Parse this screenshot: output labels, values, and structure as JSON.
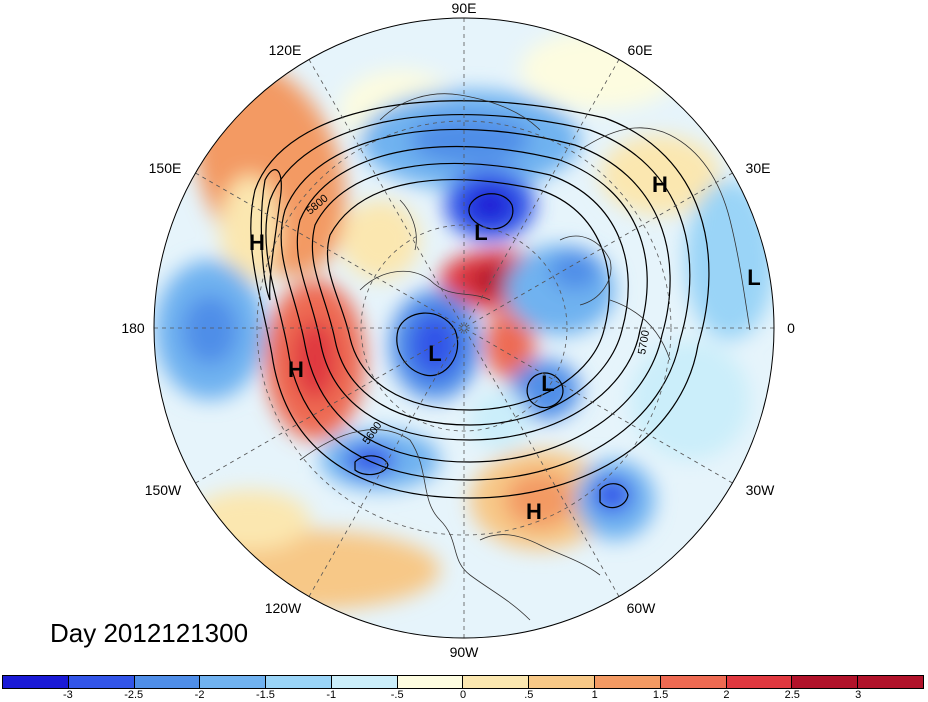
{
  "title": "Day 2012121300",
  "longitude_labels": [
    "90E",
    "60E",
    "30E",
    "0",
    "30W",
    "60W",
    "90W",
    "120W",
    "150W",
    "180",
    "150E",
    "120E"
  ],
  "contour_labels": [
    "5800",
    "5700",
    "5600"
  ],
  "centers": [
    {
      "type": "H"
    },
    {
      "type": "H"
    },
    {
      "type": "H"
    },
    {
      "type": "H"
    },
    {
      "type": "L"
    },
    {
      "type": "L"
    },
    {
      "type": "L"
    },
    {
      "type": "L"
    }
  ],
  "colorbar": {
    "colors": [
      "#1a1ad6",
      "#3255e8",
      "#4f8ee8",
      "#70b2f0",
      "#9ad4f7",
      "#cbeefa",
      "#fdfce0",
      "#fbe7b0",
      "#f7c887",
      "#f39a63",
      "#ee6a52",
      "#e0383f",
      "#b1122a"
    ],
    "tick_labels": [
      "-3",
      "-2.5",
      "-2",
      "-1.5",
      "-1",
      "-.5",
      "0",
      ".5",
      "1",
      "1.5",
      "2",
      "2.5",
      "3"
    ]
  }
}
